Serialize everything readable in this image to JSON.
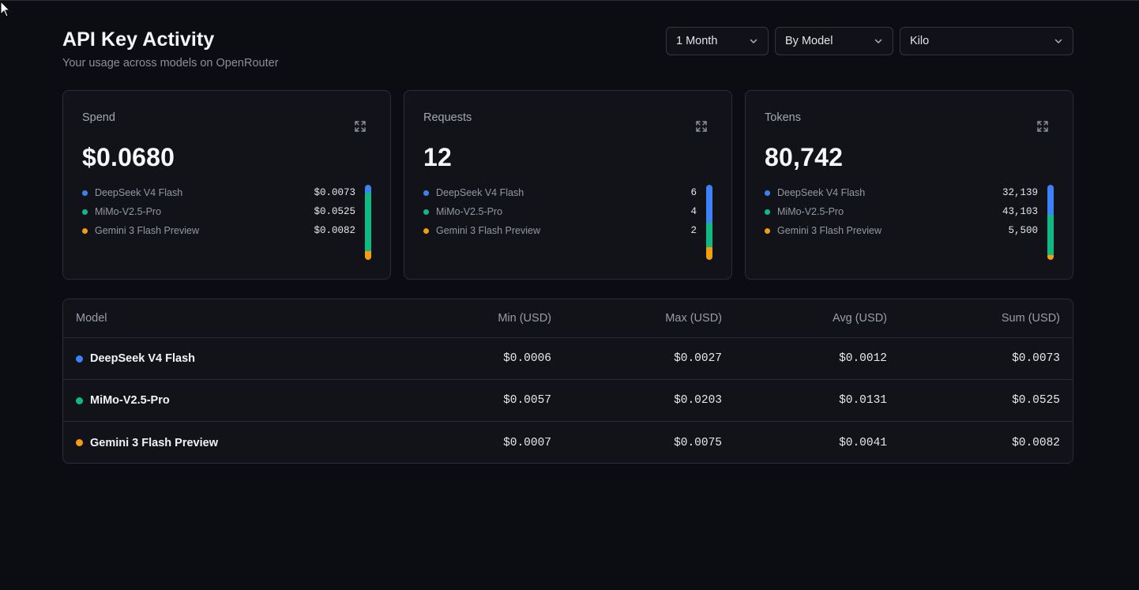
{
  "header": {
    "title": "API Key Activity",
    "subtitle": "Your usage across models on OpenRouter"
  },
  "filters": {
    "period": "1 Month",
    "grouping": "By Model",
    "key": "Kilo"
  },
  "colors": {
    "deepseek": "#3b82f6",
    "mimo": "#10b981",
    "gemini": "#f59e0b"
  },
  "cards": [
    {
      "label": "Spend",
      "value": "$0.0680",
      "items": [
        {
          "name": "DeepSeek V4 Flash",
          "value": "$0.0073",
          "amount": 0.0073,
          "color": "#3b82f6"
        },
        {
          "name": "MiMo-V2.5-Pro",
          "value": "$0.0525",
          "amount": 0.0525,
          "color": "#10b981"
        },
        {
          "name": "Gemini 3 Flash Preview",
          "value": "$0.0082",
          "amount": 0.0082,
          "color": "#f59e0b"
        }
      ]
    },
    {
      "label": "Requests",
      "value": "12",
      "items": [
        {
          "name": "DeepSeek V4 Flash",
          "value": "6",
          "amount": 6,
          "color": "#3b82f6"
        },
        {
          "name": "MiMo-V2.5-Pro",
          "value": "4",
          "amount": 4,
          "color": "#10b981"
        },
        {
          "name": "Gemini 3 Flash Preview",
          "value": "2",
          "amount": 2,
          "color": "#f59e0b"
        }
      ]
    },
    {
      "label": "Tokens",
      "value": "80,742",
      "items": [
        {
          "name": "DeepSeek V4 Flash",
          "value": "32,139",
          "amount": 32139,
          "color": "#3b82f6"
        },
        {
          "name": "MiMo-V2.5-Pro",
          "value": "43,103",
          "amount": 43103,
          "color": "#10b981"
        },
        {
          "name": "Gemini 3 Flash Preview",
          "value": "5,500",
          "amount": 5500,
          "color": "#f59e0b"
        }
      ]
    }
  ],
  "table": {
    "columns": [
      "Model",
      "Min (USD)",
      "Max (USD)",
      "Avg (USD)",
      "Sum (USD)"
    ],
    "rows": [
      {
        "model": "DeepSeek V4 Flash",
        "color": "#3b82f6",
        "min": "$0.0006",
        "max": "$0.0027",
        "avg": "$0.0012",
        "sum": "$0.0073"
      },
      {
        "model": "MiMo-V2.5-Pro",
        "color": "#10b981",
        "min": "$0.0057",
        "max": "$0.0203",
        "avg": "$0.0131",
        "sum": "$0.0525"
      },
      {
        "model": "Gemini 3 Flash Preview",
        "color": "#f59e0b",
        "min": "$0.0007",
        "max": "$0.0075",
        "avg": "$0.0041",
        "sum": "$0.0082"
      }
    ]
  }
}
